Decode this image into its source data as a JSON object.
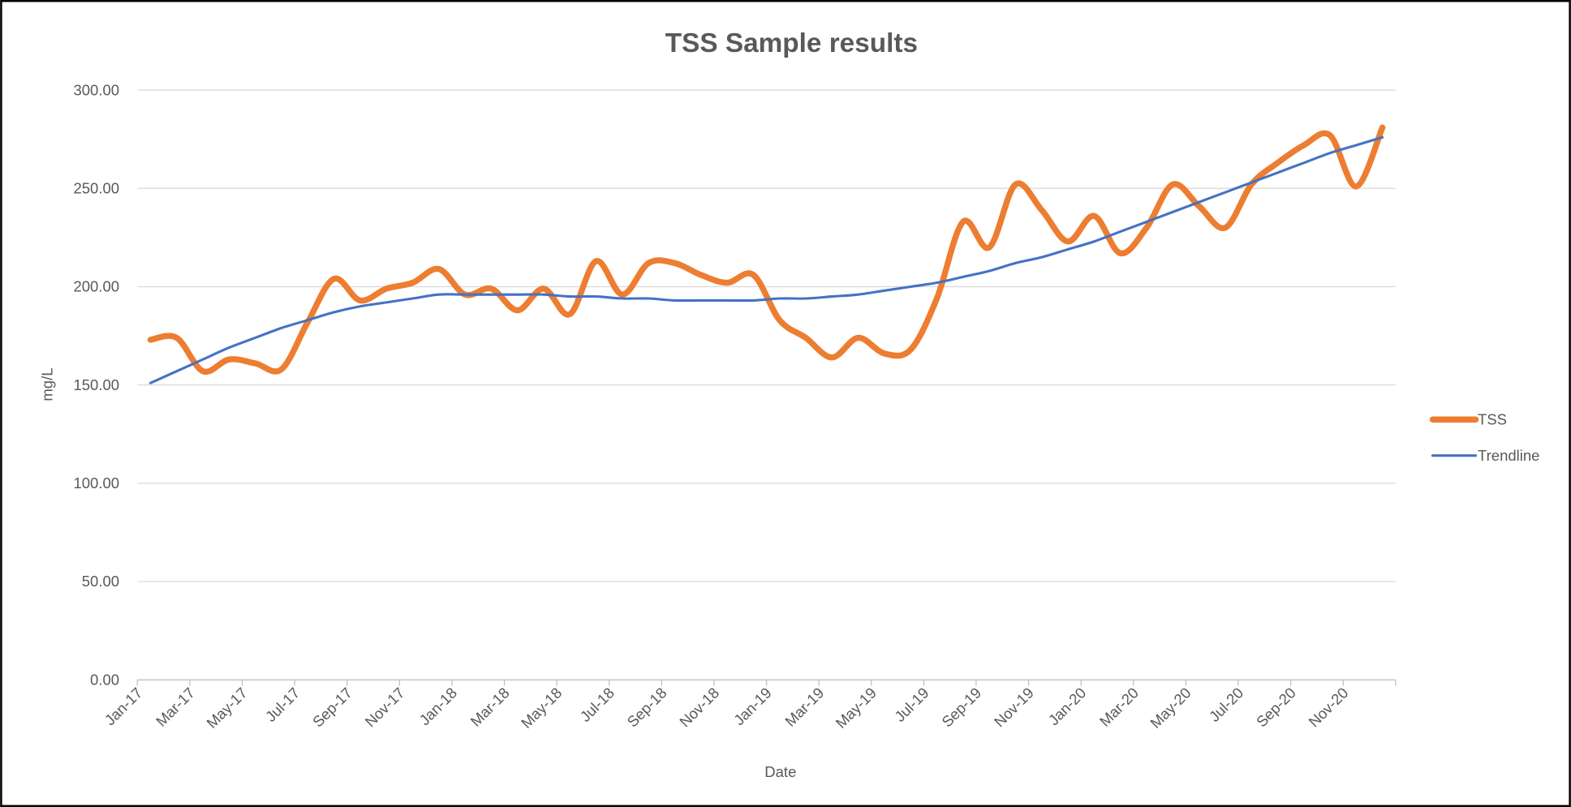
{
  "chart_data": {
    "type": "line",
    "title": "TSS Sample results",
    "x_label": "Date",
    "y_label": "mg/L",
    "categories": [
      "Jan-17",
      null,
      "Mar-17",
      null,
      "May-17",
      null,
      "Jul-17",
      null,
      "Sep-17",
      null,
      "Nov-17",
      null,
      "Jan-18",
      null,
      "Mar-18",
      null,
      "May-18",
      null,
      "Jul-18",
      null,
      "Sep-18",
      null,
      "Nov-18",
      null,
      "Jan-19",
      null,
      "Mar-19",
      null,
      "May-19",
      null,
      "Jul-19",
      null,
      "Sep-19",
      null,
      "Nov-19",
      null,
      "Jan-20",
      null,
      "Mar-20",
      null,
      "May-20",
      null,
      "Jul-20",
      null,
      "Sep-20",
      null,
      "Nov-20",
      null
    ],
    "series": [
      {
        "name": "TSS",
        "color": "#ed7d31",
        "values": [
          173,
          174,
          157,
          163,
          161,
          158,
          182,
          204,
          193,
          199,
          202,
          209,
          196,
          199,
          188,
          199,
          186,
          213,
          196,
          212,
          212,
          206,
          202,
          206,
          183,
          174,
          164,
          174,
          166,
          168,
          194,
          233,
          220,
          252,
          239,
          223,
          236,
          217,
          230,
          252,
          241,
          230,
          252,
          263,
          272,
          277,
          251,
          281
        ]
      },
      {
        "name": "Trendline",
        "color": "#4472c4",
        "values": [
          151,
          157,
          163,
          169,
          174,
          179,
          183,
          187,
          190,
          192,
          194,
          196,
          196,
          196,
          196,
          196,
          195,
          195,
          194,
          194,
          193,
          193,
          193,
          193,
          194,
          194,
          195,
          196,
          198,
          200,
          202,
          205,
          208,
          212,
          215,
          219,
          223,
          228,
          233,
          238,
          243,
          248,
          253,
          258,
          263,
          268,
          272,
          276
        ]
      }
    ],
    "ylim": [
      0,
      300
    ],
    "yticks": [
      {
        "value": 0,
        "label": "0.00"
      },
      {
        "value": 50,
        "label": "50.00"
      },
      {
        "value": 100,
        "label": "100.00"
      },
      {
        "value": 150,
        "label": "150.00"
      },
      {
        "value": 200,
        "label": "200.00"
      },
      {
        "value": 250,
        "label": "250.00"
      },
      {
        "value": 300,
        "label": "300.00"
      }
    ],
    "grid": true,
    "legend": "right"
  }
}
